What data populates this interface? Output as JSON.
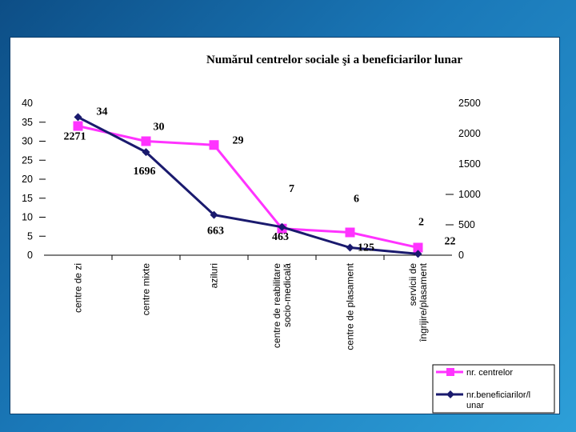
{
  "chart_data": {
    "type": "line",
    "title": "Numărul centrelor sociale şi a beneficiarilor lunar",
    "categories": [
      "centre de zi",
      "centre mixte",
      "aziluri",
      "centre de reabilitare socio-medicală",
      "centre de plasament",
      "servicii de îngrijire/plasament"
    ],
    "y_left": {
      "min": 0,
      "max": 40,
      "ticks": [
        "0",
        "5",
        "10",
        "15",
        "20",
        "25",
        "30",
        "35",
        "40"
      ]
    },
    "y_right": {
      "min": 0,
      "max": 2500,
      "ticks": [
        "0",
        "500",
        "1000",
        "1500",
        "2000",
        "2500"
      ]
    },
    "series": [
      {
        "name": "nr. centrelor",
        "axis": "left",
        "color": "#ff33ff",
        "values": [
          34,
          30,
          29,
          7,
          6,
          2
        ],
        "labels": [
          "34",
          "30",
          "29",
          "7",
          "6",
          "2"
        ]
      },
      {
        "name": "nr.beneficiarilor/lunar",
        "axis": "right",
        "color": "#1a1a6e",
        "values": [
          2271,
          1696,
          663,
          463,
          125,
          22
        ],
        "labels": [
          "2271",
          "1696",
          "663",
          "463",
          "125",
          "22"
        ]
      }
    ],
    "legend_lines": [
      [
        "nr. centrelor"
      ],
      [
        "nr.beneficiarilor/l",
        "unar"
      ]
    ],
    "legend_position": "bottom-right",
    "grid": false
  }
}
